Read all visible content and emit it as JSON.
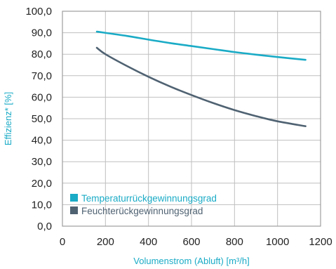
{
  "colors": {
    "temperature": "#1aabc6",
    "humidity": "#4f6272",
    "axis_title": "#1aabc6",
    "grid": "#bfbfbf",
    "frame": "#9e9e9e",
    "tick_text": "#222222"
  },
  "chart_data": {
    "type": "line",
    "xlabel": "Volumenstrom (Abluft) [m³/h]",
    "ylabel": "Effizienz* [%]",
    "xlim": [
      0,
      1200
    ],
    "ylim": [
      0,
      100
    ],
    "x_ticks": [
      "0",
      "200",
      "400",
      "600",
      "800",
      "1000",
      "1200"
    ],
    "y_ticks": [
      "0,0",
      "10,0",
      "20,0",
      "30,0",
      "40,0",
      "50,0",
      "60,0",
      "70,0",
      "80,0",
      "90,0",
      "100,0"
    ],
    "grid": true,
    "legend_position": "bottom-left",
    "series": [
      {
        "name": "Temperaturrückgewinnungsgrad",
        "color_key": "temperature",
        "points": [
          [
            160,
            90.5
          ],
          [
            300,
            88.5
          ],
          [
            400,
            86.8
          ],
          [
            500,
            85.2
          ],
          [
            600,
            83.8
          ],
          [
            700,
            82.4
          ],
          [
            800,
            81.0
          ],
          [
            900,
            79.8
          ],
          [
            1000,
            78.7
          ],
          [
            1130,
            77.4
          ]
        ]
      },
      {
        "name": "Feuchterückgewinnungsgrad",
        "color_key": "humidity",
        "points": [
          [
            160,
            83.0
          ],
          [
            200,
            80.0
          ],
          [
            300,
            74.5
          ],
          [
            400,
            69.5
          ],
          [
            500,
            65.0
          ],
          [
            600,
            61.0
          ],
          [
            700,
            57.3
          ],
          [
            800,
            54.0
          ],
          [
            900,
            51.2
          ],
          [
            1000,
            48.8
          ],
          [
            1130,
            46.5
          ]
        ]
      }
    ]
  }
}
